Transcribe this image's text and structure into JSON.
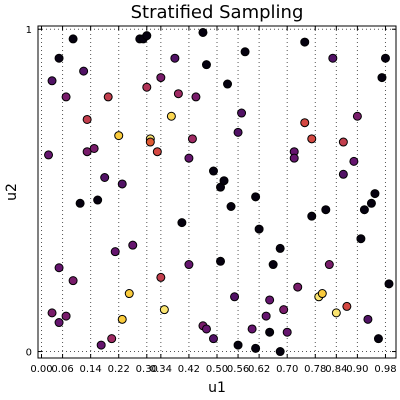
{
  "chart_data": {
    "type": "scatter",
    "title": "Stratified Sampling",
    "xlabel": "u1",
    "ylabel": "u2",
    "xlim": [
      -0.01,
      1.01
    ],
    "ylim": [
      -0.02,
      1.01
    ],
    "x_ticks": [
      "0.00",
      "0.06",
      "0.14",
      "0.22",
      "0.30",
      "0.34",
      "0.42",
      "0.50",
      "0.56",
      "0.62",
      "0.70",
      "0.78",
      "0.84",
      "0.90",
      "0.98"
    ],
    "x_tick_values": [
      0.0,
      0.06,
      0.14,
      0.22,
      0.3,
      0.34,
      0.42,
      0.5,
      0.56,
      0.62,
      0.7,
      0.78,
      0.84,
      0.9,
      0.98
    ],
    "y_ticks": [
      "0",
      "1"
    ],
    "y_tick_values": [
      0,
      1
    ],
    "grid": true,
    "grid_style": "dotted",
    "colormap": "inferno",
    "points": [
      {
        "x": 0.03,
        "y": 0.12,
        "c": 0.35
      },
      {
        "x": 0.05,
        "y": 0.26,
        "c": 0.3
      },
      {
        "x": 0.05,
        "y": 0.09,
        "c": 0.3
      },
      {
        "x": 0.07,
        "y": 0.11,
        "c": 0.35
      },
      {
        "x": 0.09,
        "y": 0.22,
        "c": 0.35
      },
      {
        "x": 0.02,
        "y": 0.61,
        "c": 0.3
      },
      {
        "x": 0.03,
        "y": 0.84,
        "c": 0.25
      },
      {
        "x": 0.05,
        "y": 0.91,
        "c": 0.03
      },
      {
        "x": 0.07,
        "y": 0.79,
        "c": 0.35
      },
      {
        "x": 0.09,
        "y": 0.97,
        "c": 0.02
      },
      {
        "x": 0.12,
        "y": 0.87,
        "c": 0.25
      },
      {
        "x": 0.11,
        "y": 0.46,
        "c": 0.02
      },
      {
        "x": 0.13,
        "y": 0.72,
        "c": 0.55
      },
      {
        "x": 0.13,
        "y": 0.62,
        "c": 0.35
      },
      {
        "x": 0.15,
        "y": 0.63,
        "c": 0.35
      },
      {
        "x": 0.16,
        "y": 0.47,
        "c": 0.02
      },
      {
        "x": 0.17,
        "y": 0.02,
        "c": 0.3
      },
      {
        "x": 0.18,
        "y": 0.54,
        "c": 0.25
      },
      {
        "x": 0.19,
        "y": 0.79,
        "c": 0.55
      },
      {
        "x": 0.2,
        "y": 0.04,
        "c": 0.45
      },
      {
        "x": 0.21,
        "y": 0.31,
        "c": 0.3
      },
      {
        "x": 0.22,
        "y": 0.67,
        "c": 0.9
      },
      {
        "x": 0.23,
        "y": 0.1,
        "c": 0.9
      },
      {
        "x": 0.23,
        "y": 0.52,
        "c": 0.25
      },
      {
        "x": 0.25,
        "y": 0.18,
        "c": 0.9
      },
      {
        "x": 0.26,
        "y": 0.33,
        "c": 0.3
      },
      {
        "x": 0.28,
        "y": 0.97,
        "c": 0.02
      },
      {
        "x": 0.29,
        "y": 0.97,
        "c": 0.02
      },
      {
        "x": 0.3,
        "y": 0.98,
        "c": 0.02
      },
      {
        "x": 0.3,
        "y": 0.82,
        "c": 0.5
      },
      {
        "x": 0.31,
        "y": 0.66,
        "c": 0.95
      },
      {
        "x": 0.31,
        "y": 0.65,
        "c": 0.65
      },
      {
        "x": 0.33,
        "y": 0.62,
        "c": 0.6
      },
      {
        "x": 0.35,
        "y": 0.13,
        "c": 0.95
      },
      {
        "x": 0.34,
        "y": 0.85,
        "c": 0.35
      },
      {
        "x": 0.37,
        "y": 0.73,
        "c": 0.92
      },
      {
        "x": 0.38,
        "y": 0.91,
        "c": 0.25
      },
      {
        "x": 0.34,
        "y": 0.23,
        "c": 0.55
      },
      {
        "x": 0.39,
        "y": 0.8,
        "c": 0.45
      },
      {
        "x": 0.4,
        "y": 0.4,
        "c": 0.02
      },
      {
        "x": 0.42,
        "y": 0.27,
        "c": 0.3
      },
      {
        "x": 0.43,
        "y": 0.66,
        "c": 0.45
      },
      {
        "x": 0.42,
        "y": 0.6,
        "c": 0.3
      },
      {
        "x": 0.44,
        "y": 0.79,
        "c": 0.35
      },
      {
        "x": 0.46,
        "y": 0.99,
        "c": 0.02
      },
      {
        "x": 0.47,
        "y": 0.89,
        "c": 0.02
      },
      {
        "x": 0.46,
        "y": 0.08,
        "c": 0.35
      },
      {
        "x": 0.47,
        "y": 0.07,
        "c": 0.3
      },
      {
        "x": 0.49,
        "y": 0.04,
        "c": 0.25
      },
      {
        "x": 0.49,
        "y": 0.56,
        "c": 0.02
      },
      {
        "x": 0.51,
        "y": 0.51,
        "c": 0.02
      },
      {
        "x": 0.52,
        "y": 0.53,
        "c": 0.02
      },
      {
        "x": 0.51,
        "y": 0.28,
        "c": 0.02
      },
      {
        "x": 0.53,
        "y": 0.83,
        "c": 0.02
      },
      {
        "x": 0.54,
        "y": 0.45,
        "c": 0.02
      },
      {
        "x": 0.55,
        "y": 0.17,
        "c": 0.25
      },
      {
        "x": 0.56,
        "y": 0.68,
        "c": 0.25
      },
      {
        "x": 0.56,
        "y": 0.02,
        "c": 0.02
      },
      {
        "x": 0.57,
        "y": 0.74,
        "c": 0.25
      },
      {
        "x": 0.58,
        "y": 0.93,
        "c": 0.02
      },
      {
        "x": 0.6,
        "y": 0.07,
        "c": 0.3
      },
      {
        "x": 0.61,
        "y": 0.01,
        "c": 0.02
      },
      {
        "x": 0.61,
        "y": 0.48,
        "c": 0.02
      },
      {
        "x": 0.62,
        "y": 0.38,
        "c": 0.02
      },
      {
        "x": 0.64,
        "y": 0.11,
        "c": 0.3
      },
      {
        "x": 0.65,
        "y": 0.16,
        "c": 0.3
      },
      {
        "x": 0.65,
        "y": 0.06,
        "c": 0.02
      },
      {
        "x": 0.66,
        "y": 0.27,
        "c": 0.02
      },
      {
        "x": 0.68,
        "y": 0.32,
        "c": 0.02
      },
      {
        "x": 0.68,
        "y": 0.0,
        "c": 0.02
      },
      {
        "x": 0.69,
        "y": 0.13,
        "c": 0.35
      },
      {
        "x": 0.7,
        "y": 0.06,
        "c": 0.3
      },
      {
        "x": 0.72,
        "y": 0.62,
        "c": 0.3
      },
      {
        "x": 0.72,
        "y": 0.6,
        "c": 0.3
      },
      {
        "x": 0.73,
        "y": 0.2,
        "c": 0.35
      },
      {
        "x": 0.75,
        "y": 0.71,
        "c": 0.6
      },
      {
        "x": 0.75,
        "y": 0.96,
        "c": 0.02
      },
      {
        "x": 0.77,
        "y": 0.42,
        "c": 0.02
      },
      {
        "x": 0.77,
        "y": 0.66,
        "c": 0.6
      },
      {
        "x": 0.79,
        "y": 0.17,
        "c": 0.95
      },
      {
        "x": 0.8,
        "y": 0.18,
        "c": 0.9
      },
      {
        "x": 0.81,
        "y": 0.44,
        "c": 0.02
      },
      {
        "x": 0.82,
        "y": 0.27,
        "c": 0.35
      },
      {
        "x": 0.83,
        "y": 0.91,
        "c": 0.25
      },
      {
        "x": 0.84,
        "y": 0.12,
        "c": 0.95
      },
      {
        "x": 0.86,
        "y": 0.65,
        "c": 0.55
      },
      {
        "x": 0.86,
        "y": 0.55,
        "c": 0.25
      },
      {
        "x": 0.87,
        "y": 0.14,
        "c": 0.6
      },
      {
        "x": 0.89,
        "y": 0.59,
        "c": 0.3
      },
      {
        "x": 0.9,
        "y": 0.73,
        "c": 0.35
      },
      {
        "x": 0.91,
        "y": 0.35,
        "c": 0.02
      },
      {
        "x": 0.92,
        "y": 0.44,
        "c": 0.02
      },
      {
        "x": 0.93,
        "y": 0.1,
        "c": 0.25
      },
      {
        "x": 0.94,
        "y": 0.46,
        "c": 0.02
      },
      {
        "x": 0.95,
        "y": 0.49,
        "c": 0.02
      },
      {
        "x": 0.96,
        "y": 0.04,
        "c": 0.02
      },
      {
        "x": 0.97,
        "y": 0.85,
        "c": 0.02
      },
      {
        "x": 0.98,
        "y": 0.91,
        "c": 0.02
      },
      {
        "x": 0.99,
        "y": 0.21,
        "c": 0.02
      }
    ]
  }
}
